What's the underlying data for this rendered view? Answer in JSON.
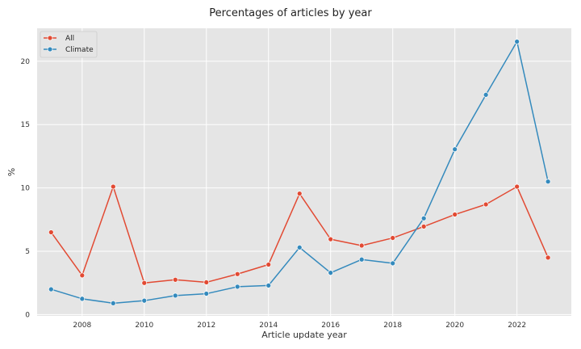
{
  "chart_data": {
    "type": "line",
    "title": "Percentages of articles by year",
    "xlabel": "Article update year",
    "ylabel": "%",
    "x": [
      2007,
      2008,
      2009,
      2010,
      2011,
      2012,
      2013,
      2014,
      2015,
      2016,
      2017,
      2018,
      2019,
      2020,
      2021,
      2022,
      2023
    ],
    "series": [
      {
        "name": "All",
        "color": "#E24A33",
        "values": [
          6.5,
          3.1,
          10.1,
          2.5,
          2.75,
          2.55,
          3.2,
          3.95,
          9.55,
          5.95,
          5.45,
          6.05,
          6.95,
          7.9,
          8.7,
          10.1,
          4.5
        ]
      },
      {
        "name": "Climate",
        "color": "#348ABD",
        "values": [
          2.0,
          1.25,
          0.9,
          1.1,
          1.5,
          1.65,
          2.2,
          2.3,
          5.3,
          3.3,
          4.35,
          4.05,
          7.6,
          13.05,
          17.35,
          21.55,
          10.5
        ]
      }
    ],
    "xlim": [
      2006.55,
      2023.75
    ],
    "ylim": [
      -0.1,
      22.6
    ],
    "xticks": [
      2008,
      2010,
      2012,
      2014,
      2016,
      2018,
      2020,
      2022
    ],
    "yticks": [
      0,
      5,
      10,
      15,
      20
    ],
    "grid": true,
    "legend_position": "top-left",
    "marker": "circle"
  }
}
